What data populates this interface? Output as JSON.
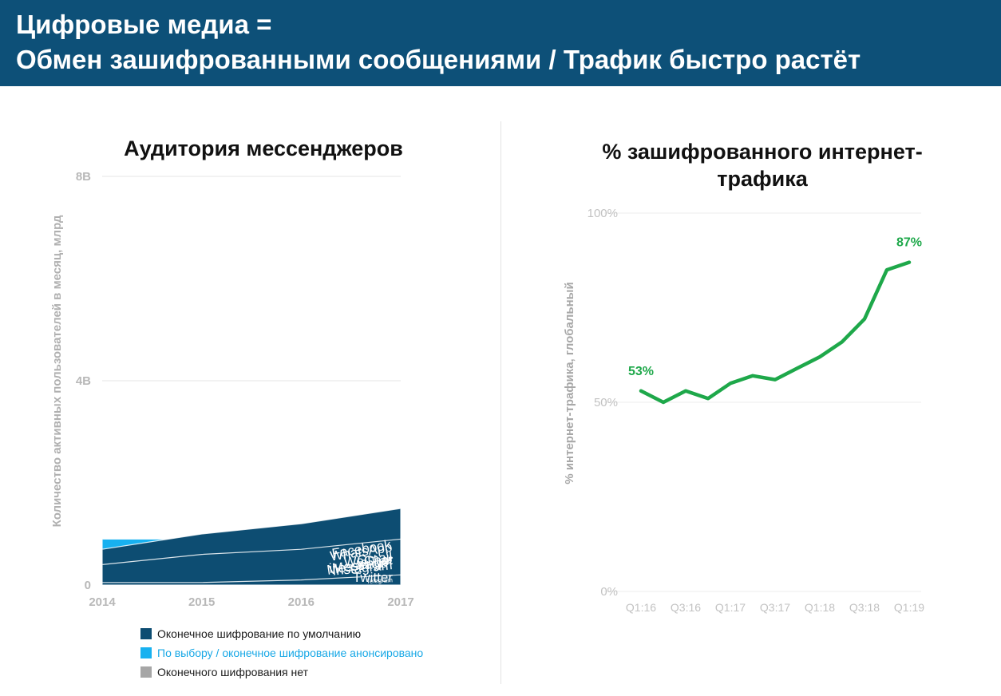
{
  "header": {
    "line1": "Цифровые медиа =",
    "line2": "Обмен зашифрованными сообщениями / Трафик быстро растёт"
  },
  "colors": {
    "header_bg": "#0d5078",
    "encrypted_default": "#0d4d72",
    "encrypted_optional": "#18b1f0",
    "not_encrypted": "#a6a6a6",
    "line_green": "#1ea84a",
    "axis_gray": "#c0c0c0"
  },
  "chart_data": [
    {
      "type": "area",
      "title": "Аудитория мессенджеров",
      "ylabel": "Количество активных пользователей в месяц, млрд",
      "xlabel": "",
      "x": [
        "2014",
        "2015",
        "2016",
        "2017"
      ],
      "y_ticks": [
        "0",
        "4B",
        "8B"
      ],
      "ylim": [
        0,
        8
      ],
      "stacked": true,
      "series": [
        {
          "name": "WeChat",
          "group": "not_encrypted",
          "values": [
            0.5,
            0.7,
            0.9,
            1.0
          ]
        },
        {
          "name": "Twitter",
          "group": "not_encrypted",
          "values": [
            0.3,
            0.3,
            0.3,
            0.3
          ]
        },
        {
          "name": "Gmail",
          "group": "encrypted_optional",
          "values": [
            0.9,
            0.9,
            0.9,
            1.1
          ]
        },
        {
          "name": "Facebook Messenger",
          "group": "encrypted_optional",
          "values": [
            0.5,
            0.7,
            1.0,
            1.3
          ]
        },
        {
          "name": "Instagram",
          "group": "encrypted_optional",
          "values": [
            0.3,
            0.4,
            0.6,
            0.8
          ]
        },
        {
          "name": "WhatsApp",
          "group": "encrypted_default",
          "values": [
            0.7,
            1.0,
            1.2,
            1.5
          ]
        },
        {
          "name": "iMessage*",
          "group": "encrypted_default",
          "values": [
            0.4,
            0.6,
            0.7,
            0.9
          ]
        },
        {
          "name": "Telegram",
          "group": "encrypted_default",
          "values": [
            0.05,
            0.05,
            0.1,
            0.2
          ]
        }
      ],
      "legend": [
        {
          "label": "Оконечное шифрование по умолчанию",
          "group": "encrypted_default"
        },
        {
          "label": "По выбору / оконечное шифрование анонсировано",
          "group": "encrypted_optional"
        },
        {
          "label": "Оконечного шифрования нет",
          "group": "not_encrypted"
        }
      ],
      "legend_position": "bottom-left",
      "grid": true
    },
    {
      "type": "line",
      "title": "% зашифрованного интернет-трафика",
      "ylabel": "% интернет-трафика, глобальный",
      "xlabel": "",
      "x": [
        "Q1:16",
        "Q2:16",
        "Q3:16",
        "Q4:16",
        "Q1:17",
        "Q2:17",
        "Q3:17",
        "Q4:17",
        "Q1:18",
        "Q2:18",
        "Q3:18",
        "Q4:18",
        "Q1:19"
      ],
      "x_tick_labels": [
        "Q1:16",
        "Q3:16",
        "Q1:17",
        "Q3:17",
        "Q1:18",
        "Q3:18",
        "Q1:19"
      ],
      "values": [
        53,
        50,
        53,
        51,
        55,
        57,
        56,
        59,
        62,
        66,
        72,
        85,
        87
      ],
      "y_ticks": [
        "0%",
        "50%",
        "100%"
      ],
      "ylim": [
        0,
        100
      ],
      "annotations": [
        {
          "label": "53%",
          "at": "Q1:16"
        },
        {
          "label": "87%",
          "at": "Q1:19"
        }
      ],
      "grid": true
    }
  ]
}
